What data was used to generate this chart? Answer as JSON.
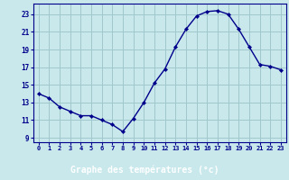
{
  "hours": [
    0,
    1,
    2,
    3,
    4,
    5,
    6,
    7,
    8,
    9,
    10,
    11,
    12,
    13,
    14,
    15,
    16,
    17,
    18,
    19,
    20,
    21,
    22,
    23
  ],
  "temps": [
    14.0,
    13.5,
    12.5,
    12.0,
    11.5,
    11.5,
    11.0,
    10.5,
    9.7,
    11.2,
    13.0,
    15.2,
    16.8,
    19.3,
    21.3,
    22.8,
    23.3,
    23.4,
    23.0,
    21.3,
    19.3,
    17.3,
    17.1,
    16.7
  ],
  "bg_color": "#c8e8ec",
  "line_color": "#00008b",
  "marker_color": "#00008b",
  "grid_color": "#a0c8cc",
  "xlabel": "Graphe des températures (°c)",
  "xlim": [
    -0.5,
    23.5
  ],
  "ylim": [
    8.5,
    24.2
  ],
  "xticks": [
    0,
    1,
    2,
    3,
    4,
    5,
    6,
    7,
    8,
    9,
    10,
    11,
    12,
    13,
    14,
    15,
    16,
    17,
    18,
    19,
    20,
    21,
    22,
    23
  ],
  "yticks": [
    9,
    11,
    13,
    15,
    17,
    19,
    21,
    23
  ],
  "tick_label_color": "#00008b",
  "xlabel_bg": "#1a1a8c",
  "xlabel_fg": "#ffffff"
}
